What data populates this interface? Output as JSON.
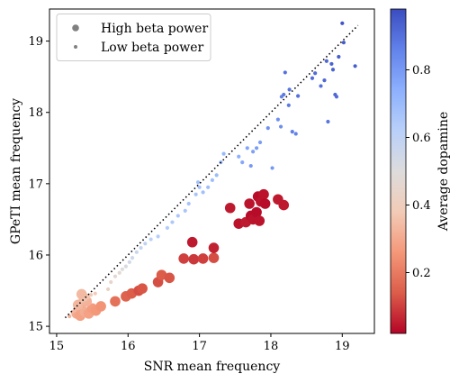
{
  "chart_data": {
    "type": "scatter",
    "xlabel": "SNR mean frequency",
    "ylabel": "GPeTI mean frequency",
    "xlim": [
      14.9,
      19.45
    ],
    "ylim": [
      14.9,
      19.45
    ],
    "xticks": [
      15,
      16,
      17,
      18,
      19
    ],
    "yticks": [
      15,
      16,
      17,
      18,
      19
    ],
    "grid": false,
    "identity_line": {
      "style": "dotted",
      "color": "#000000",
      "from": [
        15.12,
        15.12
      ],
      "to": [
        19.22,
        19.22
      ]
    },
    "legend": {
      "placement": "top-left",
      "entries": [
        {
          "label": "High beta power",
          "marker": "large",
          "color": "#808080"
        },
        {
          "label": "Low beta power",
          "marker": "small",
          "color": "#808080"
        }
      ]
    },
    "colorbar": {
      "label": "Average dopamine",
      "colormap": "coolwarm",
      "range": [
        0.02,
        0.98
      ],
      "ticks": [
        0.2,
        0.4,
        0.6,
        0.8
      ],
      "stops": [
        "#b40426",
        "#dc5d4a",
        "#f4987a",
        "#f2cbb7",
        "#dddcdc",
        "#b9d0f9",
        "#8db0fe",
        "#6282ea",
        "#3b4cc0"
      ]
    },
    "series": [
      {
        "name": "High beta power",
        "marker": "large",
        "points": [
          [
            15.28,
            15.18,
            0.3
          ],
          [
            15.33,
            15.15,
            0.28
          ],
          [
            15.36,
            15.22,
            0.29
          ],
          [
            15.4,
            15.2,
            0.31
          ],
          [
            15.45,
            15.18,
            0.28
          ],
          [
            15.5,
            15.25,
            0.27
          ],
          [
            15.3,
            15.3,
            0.33
          ],
          [
            15.42,
            15.35,
            0.32
          ],
          [
            15.38,
            15.4,
            0.33
          ],
          [
            15.55,
            15.22,
            0.26
          ],
          [
            15.62,
            15.28,
            0.25
          ],
          [
            15.35,
            15.45,
            0.34
          ],
          [
            15.82,
            15.35,
            0.18
          ],
          [
            15.97,
            15.42,
            0.15
          ],
          [
            16.05,
            15.46,
            0.14
          ],
          [
            16.15,
            15.5,
            0.12
          ],
          [
            16.2,
            15.53,
            0.13
          ],
          [
            16.42,
            15.62,
            0.12
          ],
          [
            16.47,
            15.72,
            0.14
          ],
          [
            16.58,
            15.68,
            0.13
          ],
          [
            16.78,
            15.95,
            0.1
          ],
          [
            16.92,
            15.94,
            0.09
          ],
          [
            17.05,
            15.95,
            0.1
          ],
          [
            17.2,
            15.96,
            0.12
          ],
          [
            16.9,
            16.18,
            0.05
          ],
          [
            17.2,
            16.1,
            0.06
          ],
          [
            17.43,
            16.66,
            0.05
          ],
          [
            17.55,
            16.44,
            0.04
          ],
          [
            17.65,
            16.46,
            0.05
          ],
          [
            17.7,
            16.72,
            0.04
          ],
          [
            17.72,
            16.55,
            0.03
          ],
          [
            17.75,
            16.5,
            0.04
          ],
          [
            17.8,
            16.6,
            0.03
          ],
          [
            17.82,
            16.82,
            0.03
          ],
          [
            17.86,
            16.75,
            0.04
          ],
          [
            17.9,
            16.85,
            0.04
          ],
          [
            17.92,
            16.72,
            0.03
          ],
          [
            17.84,
            16.48,
            0.04
          ],
          [
            18.1,
            16.78,
            0.05
          ],
          [
            18.18,
            16.7,
            0.05
          ]
        ]
      },
      {
        "name": "Low beta power",
        "marker": "small",
        "points": [
          [
            15.18,
            15.14,
            0.32
          ],
          [
            15.22,
            15.2,
            0.33
          ],
          [
            15.25,
            15.22,
            0.34
          ],
          [
            15.28,
            15.28,
            0.35
          ],
          [
            15.32,
            15.3,
            0.35
          ],
          [
            15.36,
            15.36,
            0.36
          ],
          [
            15.4,
            15.38,
            0.37
          ],
          [
            15.44,
            15.41,
            0.37
          ],
          [
            15.48,
            15.44,
            0.38
          ],
          [
            15.54,
            15.46,
            0.38
          ],
          [
            15.72,
            15.52,
            0.42
          ],
          [
            15.76,
            15.62,
            0.44
          ],
          [
            15.82,
            15.7,
            0.46
          ],
          [
            15.88,
            15.75,
            0.48
          ],
          [
            15.92,
            15.8,
            0.5
          ],
          [
            15.97,
            15.84,
            0.52
          ],
          [
            16.02,
            15.9,
            0.54
          ],
          [
            16.06,
            15.96,
            0.55
          ],
          [
            16.12,
            16.04,
            0.57
          ],
          [
            16.18,
            16.1,
            0.58
          ],
          [
            16.24,
            16.16,
            0.6
          ],
          [
            16.32,
            16.22,
            0.62
          ],
          [
            16.42,
            16.26,
            0.63
          ],
          [
            16.55,
            16.38,
            0.64
          ],
          [
            16.62,
            16.46,
            0.65
          ],
          [
            16.7,
            16.55,
            0.66
          ],
          [
            16.8,
            16.62,
            0.66
          ],
          [
            16.85,
            16.72,
            0.67
          ],
          [
            16.95,
            16.85,
            0.67
          ],
          [
            17.0,
            16.95,
            0.68
          ],
          [
            16.98,
            17.02,
            0.68
          ],
          [
            17.05,
            16.88,
            0.68
          ],
          [
            17.12,
            16.95,
            0.69
          ],
          [
            17.18,
            17.05,
            0.69
          ],
          [
            17.24,
            17.12,
            0.7
          ],
          [
            17.3,
            17.3,
            0.7
          ],
          [
            17.34,
            17.42,
            0.71
          ],
          [
            17.55,
            17.38,
            0.74
          ],
          [
            17.6,
            17.3,
            0.76
          ],
          [
            17.67,
            17.5,
            0.77
          ],
          [
            17.75,
            17.45,
            0.78
          ],
          [
            17.8,
            17.5,
            0.79
          ],
          [
            17.85,
            17.58,
            0.79
          ],
          [
            17.72,
            17.25,
            0.8
          ],
          [
            18.02,
            17.22,
            0.8
          ],
          [
            17.96,
            17.78,
            0.82
          ],
          [
            18.1,
            17.9,
            0.82
          ],
          [
            18.14,
            17.8,
            0.83
          ],
          [
            18.15,
            18.22,
            0.86
          ],
          [
            18.18,
            18.25,
            0.88
          ],
          [
            18.2,
            18.56,
            0.9
          ],
          [
            18.25,
            18.1,
            0.88
          ],
          [
            18.26,
            18.32,
            0.89
          ],
          [
            18.3,
            17.73,
            0.87
          ],
          [
            18.35,
            17.7,
            0.86
          ],
          [
            18.38,
            18.23,
            0.9
          ],
          [
            18.7,
            18.37,
            0.9
          ],
          [
            18.58,
            18.48,
            0.91
          ],
          [
            18.62,
            18.55,
            0.91
          ],
          [
            18.75,
            18.45,
            0.92
          ],
          [
            18.78,
            18.72,
            0.92
          ],
          [
            18.8,
            17.87,
            0.89
          ],
          [
            18.85,
            18.68,
            0.93
          ],
          [
            18.87,
            18.6,
            0.93
          ],
          [
            18.9,
            18.25,
            0.92
          ],
          [
            18.92,
            18.22,
            0.91
          ],
          [
            18.95,
            18.78,
            0.94
          ],
          [
            19.0,
            19.25,
            0.96
          ],
          [
            19.02,
            18.98,
            0.95
          ],
          [
            19.18,
            18.65,
            0.94
          ]
        ]
      }
    ]
  }
}
